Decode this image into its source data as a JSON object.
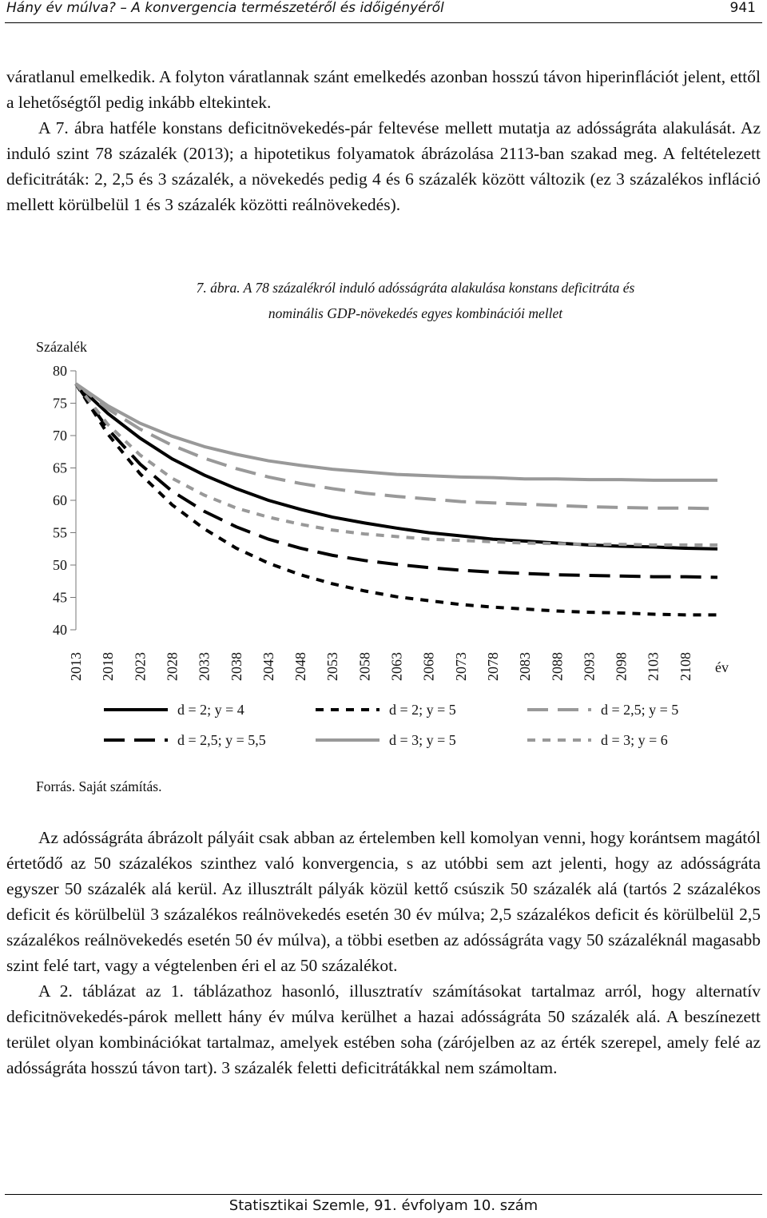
{
  "header": {
    "title": "Hány év múlva? – A konvergencia természetéről és időigényéről",
    "page": "941"
  },
  "paragraphs_top": [
    "váratlanul emelkedik. A folyton váratlannak szánt emelkedés azonban hosszú távon hiperinflációt jelent, ettől a lehetőségtől pedig inkább eltekintek.",
    "A 7. ábra hatféle konstans deficitnövekedés-pár feltevése mellett mutatja az adósságráta alakulását. Az induló szint 78 százalék (2013); a hipotetikus folyamatok ábrázolása 2113-ban szakad meg. A feltételezett deficitráták: 2, 2,5 és 3 százalék, a növekedés pedig 4 és 6 százalék között változik (ez 3 százalékos infláció mellett körülbelül 1 és 3 százalék közötti reálnövekedés)."
  ],
  "figure": {
    "label": "7. ábra.",
    "caption": "A 78 százalékról induló adósságráta alakulása konstans deficitráta és nominális GDP-növekedés egyes kombinációi mellet"
  },
  "chart_data": {
    "type": "line",
    "ylabel": "Százalék",
    "xlabel": "év",
    "x": [
      2013,
      2018,
      2023,
      2028,
      2033,
      2038,
      2043,
      2048,
      2053,
      2058,
      2063,
      2068,
      2073,
      2078,
      2083,
      2088,
      2093,
      2098,
      2103,
      2108,
      2113
    ],
    "xlim": [
      2013,
      2113
    ],
    "xticks": [
      2013,
      2018,
      2023,
      2028,
      2033,
      2038,
      2043,
      2048,
      2053,
      2058,
      2063,
      2068,
      2073,
      2078,
      2083,
      2088,
      2093,
      2098,
      2103,
      2108
    ],
    "ylim": [
      40,
      80
    ],
    "yticks": [
      40,
      45,
      50,
      55,
      60,
      65,
      70,
      75,
      80
    ],
    "series": [
      {
        "name": "d = 2; y = 4",
        "color": "#000000",
        "style": "solid",
        "values": [
          78,
          73.4,
          69.6,
          66.4,
          63.9,
          61.8,
          60.0,
          58.6,
          57.4,
          56.5,
          55.7,
          55.0,
          54.5,
          54.0,
          53.7,
          53.4,
          53.1,
          52.9,
          52.8,
          52.6,
          52.5
        ]
      },
      {
        "name": "d = 2; y = 5",
        "color": "#000000",
        "style": "short",
        "values": [
          78,
          70.2,
          64.1,
          59.3,
          55.6,
          52.6,
          50.3,
          48.5,
          47.1,
          46.0,
          45.1,
          44.5,
          43.9,
          43.5,
          43.2,
          42.9,
          42.7,
          42.6,
          42.4,
          42.3,
          42.3
        ]
      },
      {
        "name": "d = 2,5; y = 5",
        "color": "#999999",
        "style": "long",
        "values": [
          78,
          74.1,
          71.0,
          68.5,
          66.5,
          64.9,
          63.6,
          62.6,
          61.8,
          61.1,
          60.6,
          60.2,
          59.8,
          59.6,
          59.4,
          59.2,
          59.0,
          58.9,
          58.8,
          58.8,
          58.7
        ]
      },
      {
        "name": "d = 2,5; y = 5,5",
        "color": "#000000",
        "style": "long",
        "values": [
          78,
          71.0,
          65.6,
          61.4,
          58.3,
          55.9,
          54.0,
          52.6,
          51.5,
          50.7,
          50.1,
          49.6,
          49.2,
          48.9,
          48.7,
          48.5,
          48.4,
          48.3,
          48.2,
          48.2,
          48.1
        ]
      },
      {
        "name": "d = 3; y = 5",
        "color": "#999999",
        "style": "solid",
        "values": [
          78,
          74.6,
          71.9,
          69.9,
          68.3,
          67.1,
          66.1,
          65.4,
          64.8,
          64.4,
          64.0,
          63.8,
          63.6,
          63.5,
          63.3,
          63.3,
          63.2,
          63.2,
          63.1,
          63.1,
          63.1
        ]
      },
      {
        "name": "d = 3; y = 6",
        "color": "#999999",
        "style": "short",
        "values": [
          78,
          71.7,
          67.0,
          63.4,
          60.8,
          58.8,
          57.4,
          56.3,
          55.4,
          54.8,
          54.4,
          54.0,
          53.8,
          53.6,
          53.4,
          53.3,
          53.2,
          53.2,
          53.1,
          53.1,
          53.1
        ]
      }
    ]
  },
  "source": "Forrás. Saját számítás.",
  "paragraphs_bottom": [
    "Az adósságráta ábrázolt pályáit csak abban az értelemben kell komolyan venni, hogy korántsem magától értetődő az 50 százalékos szinthez való konvergencia, s az utóbbi sem azt jelenti, hogy az adósságráta egyszer 50 százalék alá kerül. Az illusztrált pályák közül kettő csúszik 50 százalék alá (tartós 2 százalékos deficit és körülbelül 3 százalékos reálnövekedés esetén 30 év múlva; 2,5 százalékos deficit és körülbelül 2,5 százalékos reálnövekedés esetén 50 év múlva), a többi esetben az adósságráta vagy 50 százaléknál magasabb szint felé tart, vagy a végtelenben éri el az 50 százalékot.",
    "A 2. táblázat az 1. táblázathoz hasonló, illusztratív számításokat tartalmaz arról, hogy alternatív deficitnövekedés-párok mellett hány év múlva kerülhet a hazai adósságráta 50 százalék alá. A beszínezett terület olyan kombinációkat tartalmaz, amelyek estében soha (zárójelben az az érték szerepel, amely felé az adósságráta hosszú távon tart). 3 százalék feletti deficitrátákkal nem számoltam."
  ],
  "footer": "Statisztikai Szemle, 91. évfolyam 10. szám"
}
